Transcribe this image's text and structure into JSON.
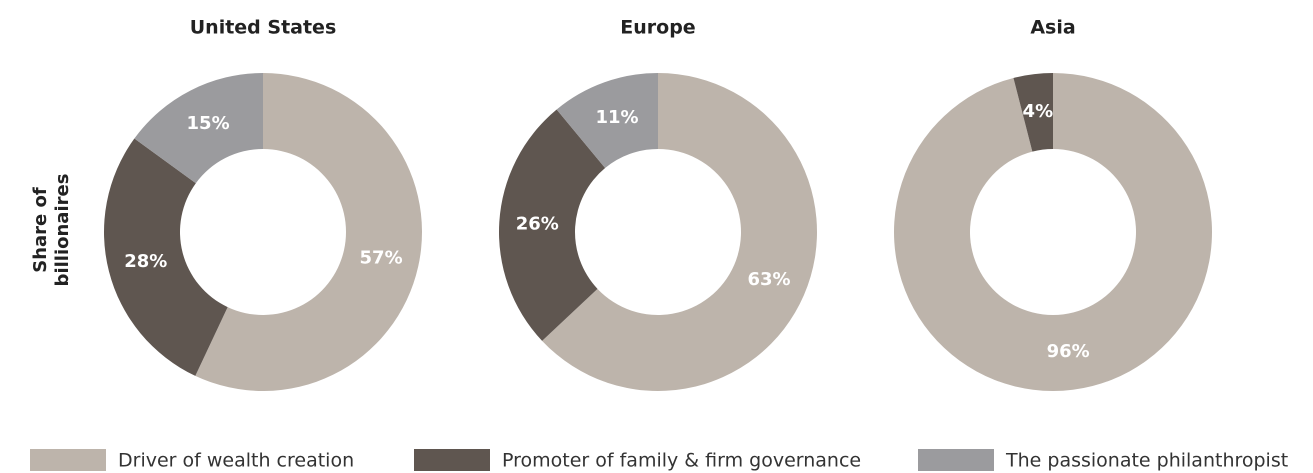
{
  "chart_data": [
    {
      "type": "pie",
      "title": "United States",
      "y_label": "Share of billionaires",
      "values": [
        57,
        28,
        15
      ],
      "value_labels": [
        "57%",
        "28%",
        "15%"
      ]
    },
    {
      "type": "pie",
      "title": "Europe",
      "values": [
        63,
        26,
        11
      ],
      "value_labels": [
        "63%",
        "26%",
        "11%"
      ]
    },
    {
      "type": "pie",
      "title": "Asia",
      "values": [
        96,
        4,
        null
      ],
      "value_labels": [
        "96%",
        "4%",
        null
      ]
    }
  ],
  "legend": {
    "names": [
      "Driver of wealth creation",
      "Promoter of family & firm governance",
      "The passionate philanthropist"
    ],
    "colors": [
      "#bdb4ab",
      "#5f5650",
      "#9b9b9e"
    ]
  }
}
